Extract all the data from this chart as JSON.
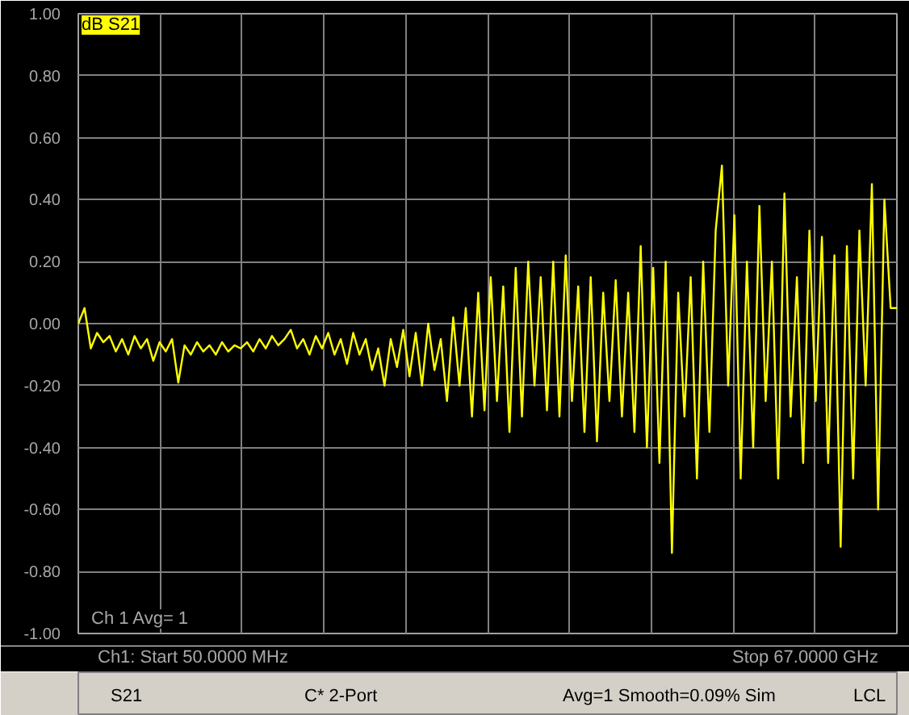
{
  "chart_data": {
    "type": "line",
    "annotations": [
      "dB S21",
      "Ch 1 Avg= 1",
      "Ch1: Start 50.0000 MHz",
      "Stop 67.0000 GHz",
      "S21",
      "C* 2-Port",
      "Avg=1 Smooth=0.09% Sim",
      "LCL"
    ],
    "categories": [
      null,
      null,
      null,
      null,
      null,
      null,
      null,
      null,
      null,
      null,
      null,
      null,
      null,
      null,
      null,
      null,
      null,
      null,
      null,
      null,
      null,
      null,
      null,
      null,
      null,
      null,
      null,
      null,
      null,
      null,
      null,
      null,
      null,
      null,
      null,
      null,
      null,
      null,
      null,
      null,
      null,
      null,
      null,
      null,
      null,
      null,
      null,
      null,
      null,
      null,
      null,
      null,
      null,
      null,
      null,
      null,
      null,
      null,
      null,
      null,
      null,
      null,
      null,
      null,
      null,
      null,
      null,
      null,
      null,
      null,
      null,
      null,
      null,
      null,
      null,
      null,
      null,
      null,
      null,
      null,
      null,
      null,
      null,
      null,
      null,
      null,
      null,
      null,
      null,
      null,
      null,
      null,
      null,
      null,
      null,
      null,
      null,
      null,
      null,
      null,
      null,
      null,
      null,
      null,
      null,
      null,
      null,
      null,
      null,
      null,
      null,
      null,
      null,
      null,
      null,
      null,
      null,
      null,
      null,
      null,
      null,
      null,
      null,
      null,
      null,
      null,
      null,
      null,
      null,
      null,
      null,
      null
    ],
    "series": [
      {
        "color": "#ffff00",
        "values": [
          0.0,
          0.05,
          -0.08,
          -0.03,
          -0.06,
          -0.04,
          -0.09,
          -0.05,
          -0.1,
          -0.04,
          -0.08,
          -0.05,
          -0.12,
          -0.06,
          -0.09,
          -0.05,
          -0.19,
          -0.07,
          -0.1,
          -0.06,
          -0.09,
          -0.07,
          -0.1,
          -0.06,
          -0.09,
          -0.07,
          -0.08,
          -0.06,
          -0.09,
          -0.05,
          -0.08,
          -0.04,
          -0.07,
          -0.05,
          -0.02,
          -0.08,
          -0.05,
          -0.1,
          -0.04,
          -0.08,
          -0.03,
          -0.1,
          -0.05,
          -0.13,
          -0.03,
          -0.1,
          -0.05,
          -0.15,
          -0.08,
          -0.2,
          -0.05,
          -0.14,
          -0.02,
          -0.17,
          -0.03,
          -0.2,
          0.0,
          -0.15,
          -0.05,
          -0.25,
          0.02,
          -0.2,
          0.05,
          -0.3,
          0.1,
          -0.28,
          0.15,
          -0.25,
          0.12,
          -0.35,
          0.18,
          -0.3,
          0.2,
          -0.2,
          0.15,
          -0.28,
          0.2,
          -0.3,
          0.22,
          -0.25,
          0.12,
          -0.35,
          0.15,
          -0.38,
          0.1,
          -0.25,
          0.14,
          -0.3,
          0.1,
          -0.35,
          0.25,
          -0.4,
          0.18,
          -0.45,
          0.2,
          -0.74,
          0.1,
          -0.3,
          0.15,
          -0.5,
          0.2,
          -0.35,
          0.3,
          0.51,
          -0.2,
          0.35,
          -0.5,
          0.2,
          -0.4,
          0.38,
          -0.25,
          0.2,
          -0.5,
          0.42,
          -0.3,
          0.15,
          -0.45,
          0.3,
          -0.25,
          0.28,
          -0.45,
          0.22,
          -0.72,
          0.25,
          -0.5,
          0.3,
          -0.2,
          0.45,
          -0.6,
          0.4,
          0.05,
          0.05
        ]
      }
    ],
    "ylim": [
      -1.0,
      1.0
    ],
    "yticks": [
      {
        "value": -1.0,
        "label": "-1.00"
      },
      {
        "value": -0.8,
        "label": "-0.80"
      },
      {
        "value": -0.6,
        "label": "-0.60"
      },
      {
        "value": -0.4,
        "label": "-0.40"
      },
      {
        "value": -0.2,
        "label": "-0.20"
      },
      {
        "value": 0.0,
        "label": "0.00"
      },
      {
        "value": 0.2,
        "label": "0.20"
      },
      {
        "value": 0.4,
        "label": "0.40"
      },
      {
        "value": 0.6,
        "label": "0.60"
      },
      {
        "value": 0.8,
        "label": "0.80"
      },
      {
        "value": 1.0,
        "label": "1.00"
      }
    ],
    "grid": true,
    "tick_labels": "y",
    "marker": "none",
    "line_style": "solid"
  }
}
